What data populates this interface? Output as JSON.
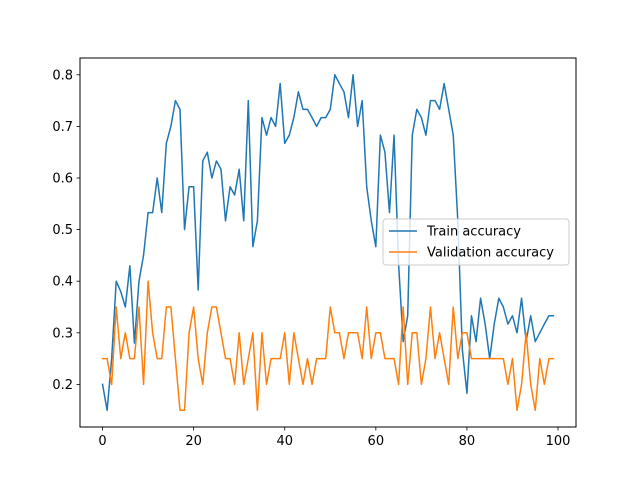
{
  "chart_data": {
    "type": "line",
    "title": "",
    "xlabel": "",
    "ylabel": "",
    "xlim": [
      -4.95,
      103.95
    ],
    "ylim": [
      0.1175,
      0.8325
    ],
    "x_ticks": [
      0,
      20,
      40,
      60,
      80,
      100
    ],
    "y_ticks": [
      0.2,
      0.3,
      0.4,
      0.5,
      0.6,
      0.7,
      0.8
    ],
    "grid": false,
    "legend_position": "center-right",
    "x": [
      0,
      1,
      2,
      3,
      4,
      5,
      6,
      7,
      8,
      9,
      10,
      11,
      12,
      13,
      14,
      15,
      16,
      17,
      18,
      19,
      20,
      21,
      22,
      23,
      24,
      25,
      26,
      27,
      28,
      29,
      30,
      31,
      32,
      33,
      34,
      35,
      36,
      37,
      38,
      39,
      40,
      41,
      42,
      43,
      44,
      45,
      46,
      47,
      48,
      49,
      50,
      51,
      52,
      53,
      54,
      55,
      56,
      57,
      58,
      59,
      60,
      61,
      62,
      63,
      64,
      65,
      66,
      67,
      68,
      69,
      70,
      71,
      72,
      73,
      74,
      75,
      76,
      77,
      78,
      79,
      80,
      81,
      82,
      83,
      84,
      85,
      86,
      87,
      88,
      89,
      90,
      91,
      92,
      93,
      94,
      95,
      96,
      97,
      98,
      99
    ],
    "series": [
      {
        "name": "Train accuracy",
        "color": "#1f77b4",
        "values": [
          0.2,
          0.15,
          0.25,
          0.4,
          0.38,
          0.35,
          0.43,
          0.28,
          0.4,
          0.45,
          0.533,
          0.533,
          0.6,
          0.533,
          0.667,
          0.7,
          0.75,
          0.733,
          0.5,
          0.583,
          0.583,
          0.383,
          0.633,
          0.65,
          0.6,
          0.633,
          0.617,
          0.517,
          0.583,
          0.567,
          0.617,
          0.517,
          0.75,
          0.467,
          0.517,
          0.717,
          0.683,
          0.717,
          0.7,
          0.783,
          0.667,
          0.683,
          0.717,
          0.767,
          0.733,
          0.733,
          0.717,
          0.7,
          0.717,
          0.717,
          0.733,
          0.8,
          0.783,
          0.767,
          0.717,
          0.8,
          0.7,
          0.75,
          0.583,
          0.517,
          0.467,
          0.683,
          0.65,
          0.533,
          0.683,
          0.433,
          0.283,
          0.333,
          0.683,
          0.733,
          0.717,
          0.683,
          0.75,
          0.75,
          0.733,
          0.783,
          0.733,
          0.683,
          0.517,
          0.267,
          0.183,
          0.333,
          0.283,
          0.367,
          0.317,
          0.25,
          0.317,
          0.367,
          0.35,
          0.317,
          0.333,
          0.3,
          0.367,
          0.283,
          0.333,
          0.283,
          0.3,
          0.317,
          0.333,
          0.333
        ]
      },
      {
        "name": "Validation accuracy",
        "color": "#ff7f0e",
        "values": [
          0.25,
          0.25,
          0.2,
          0.35,
          0.25,
          0.3,
          0.25,
          0.25,
          0.35,
          0.2,
          0.4,
          0.3,
          0.25,
          0.25,
          0.35,
          0.35,
          0.25,
          0.15,
          0.15,
          0.3,
          0.35,
          0.25,
          0.2,
          0.3,
          0.35,
          0.35,
          0.3,
          0.25,
          0.25,
          0.2,
          0.3,
          0.2,
          0.25,
          0.3,
          0.15,
          0.3,
          0.2,
          0.25,
          0.25,
          0.25,
          0.3,
          0.2,
          0.3,
          0.25,
          0.2,
          0.25,
          0.2,
          0.25,
          0.25,
          0.25,
          0.35,
          0.3,
          0.3,
          0.25,
          0.3,
          0.3,
          0.3,
          0.25,
          0.35,
          0.25,
          0.3,
          0.3,
          0.25,
          0.25,
          0.25,
          0.2,
          0.35,
          0.2,
          0.3,
          0.3,
          0.2,
          0.25,
          0.35,
          0.25,
          0.3,
          0.25,
          0.2,
          0.35,
          0.25,
          0.3,
          0.3,
          0.25,
          0.25,
          0.25,
          0.25,
          0.25,
          0.25,
          0.25,
          0.25,
          0.2,
          0.25,
          0.15,
          0.2,
          0.3,
          0.2,
          0.15,
          0.25,
          0.2,
          0.25,
          0.25
        ]
      }
    ]
  }
}
